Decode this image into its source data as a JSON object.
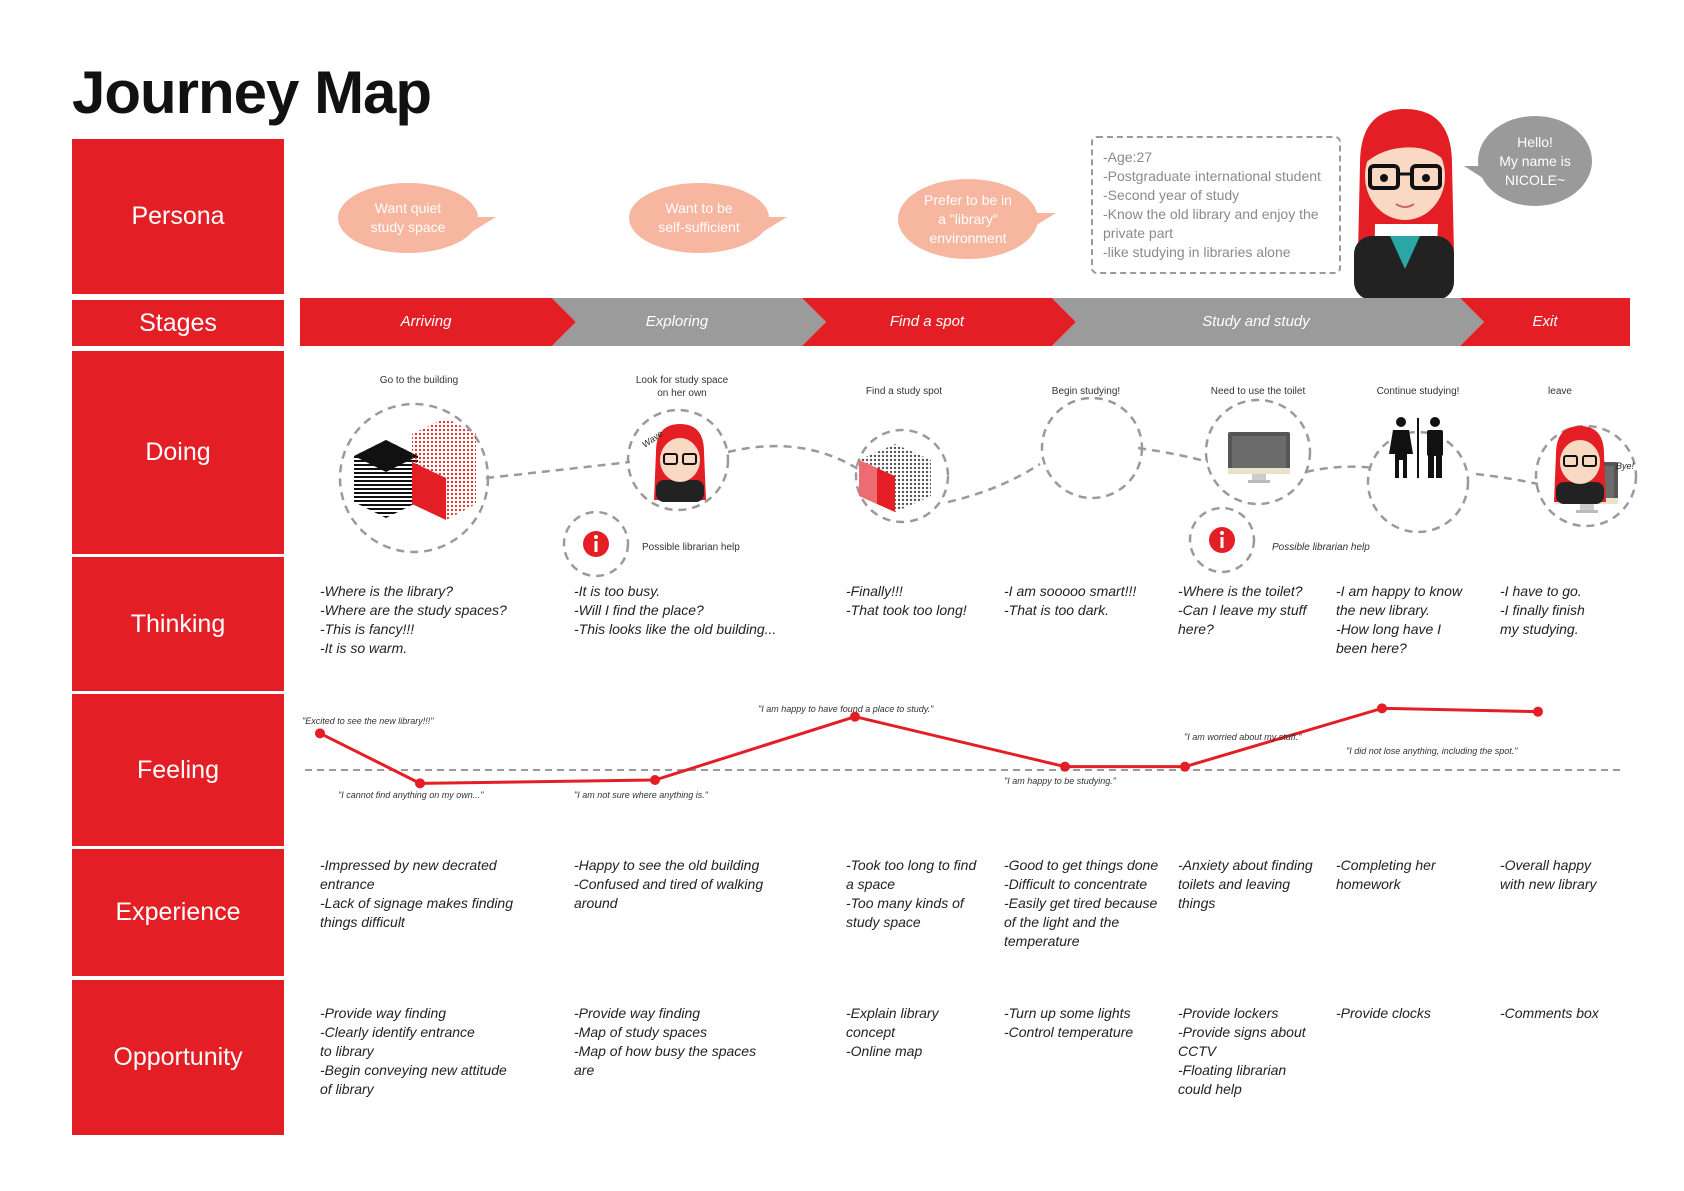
{
  "title": "Journey Map",
  "row_labels": {
    "persona": "Persona",
    "stages": "Stages",
    "doing": "Doing",
    "thinking": "Thinking",
    "feeling": "Feeling",
    "experience": "Experience",
    "opportunity": "Opportunity"
  },
  "persona": {
    "bubbles": [
      "Want quiet study space",
      "Want to be self-sufficient",
      "Prefer to be in a \"library\" environment"
    ],
    "bubble_lines": [
      [
        "Want quiet",
        "study space"
      ],
      [
        "Want to be",
        "self-sufficient"
      ],
      [
        "Prefer to be in",
        "a \"library\"",
        "environment"
      ]
    ],
    "info": [
      "-Age:27",
      "-Postgraduate international student",
      "-Second year of study",
      "-Know the old library and enjoy the",
      " private part",
      "-like studying in libraries alone"
    ],
    "greeting": [
      "Hello!",
      "My name is",
      "NICOLE~"
    ]
  },
  "stages": [
    "Arriving",
    "Exploring",
    "Find a spot",
    "Study and study",
    "Exit"
  ],
  "colors": {
    "red": "#e41e25",
    "gray": "#9b9b9b",
    "peach": "#f6b6a0",
    "dash": "#9a9a9a"
  },
  "doing": {
    "steps": [
      "Go to the building",
      "Look for study space on her own",
      "Find a study spot",
      "Begin studying!",
      "Need to use the toilet",
      "Continue studying!",
      "leave"
    ],
    "step2_lines": [
      "Look for study space",
      "on her own"
    ],
    "librarian_help": [
      "Possible librarian help",
      "Possible librarian help"
    ],
    "icons": [
      "building-icon",
      "persona-wave-icon",
      "cube-icon",
      "monitor-icon",
      "toilet-icon",
      "monitor-icon",
      "persona-bye-icon",
      "info-icon"
    ],
    "wave_text": "Wave",
    "bye_text": "Bye!"
  },
  "thinking": [
    [
      "-Where is the library?",
      "-Where are the study spaces?",
      "-This is fancy!!!",
      "-It is so warm."
    ],
    [
      "-It is too busy.",
      "-Will I find the place?",
      "-This looks like the old building..."
    ],
    [
      "-Finally!!!",
      "-That took too long!"
    ],
    [
      "-I am sooooo smart!!!",
      "-That is too dark."
    ],
    [
      "-Where is the toilet?",
      "-Can I leave my stuff",
      " here?"
    ],
    [
      "-I am happy to know",
      " the new library.",
      "-How long have I",
      " been here?"
    ],
    [
      "-I have to go.",
      "-I finally finish",
      " my studying."
    ]
  ],
  "feeling": {
    "quotes": [
      "\"Excited to see the new library!!!\"",
      "\"I cannot find anything on my own...\"",
      "\"I am not sure where anything is.\"",
      "\"I am happy to have found a place to study.\"",
      "\"I am happy to be studying.\"",
      "\"I am worried about my stuff.\"",
      "\"I did not lose anything, including the spot.\""
    ]
  },
  "chart_data": {
    "type": "line",
    "x": [
      1,
      2,
      3,
      4,
      5,
      6,
      7,
      8
    ],
    "values": [
      4,
      1,
      1.2,
      5,
      2,
      2,
      5.5,
      5.3
    ],
    "neutral_line": 1.8,
    "title": "",
    "xlabel": "",
    "ylabel": ""
  },
  "experience": [
    [
      "-Impressed by new decrated",
      " entrance",
      "-Lack of signage makes finding",
      " things difficult"
    ],
    [
      "-Happy to see the old building",
      "-Confused and tired of walking",
      " around"
    ],
    [
      "-Took too long to find",
      " a space",
      "-Too many kinds of",
      " study space"
    ],
    [
      "-Good to get things done",
      "-Difficult to concentrate",
      "-Easily get tired because",
      " of the light and the",
      " temperature"
    ],
    [
      "-Anxiety about finding",
      " toilets and leaving",
      " things"
    ],
    [
      "-Completing her",
      " homework"
    ],
    [
      "-Overall happy",
      " with new library"
    ]
  ],
  "opportunity": [
    [
      "-Provide way finding",
      "-Clearly identify entrance",
      " to library",
      "-Begin conveying new attitude",
      " of library"
    ],
    [
      "-Provide way finding",
      "-Map of study spaces",
      "-Map of how busy the spaces",
      " are"
    ],
    [
      "-Explain library",
      " concept",
      "-Online map"
    ],
    [
      "-Turn up some lights",
      "-Control temperature"
    ],
    [
      "-Provide lockers",
      "-Provide signs about",
      " CCTV",
      "-Floating librarian",
      " could help"
    ],
    [
      "-Provide clocks"
    ],
    [
      "-Comments box"
    ]
  ]
}
